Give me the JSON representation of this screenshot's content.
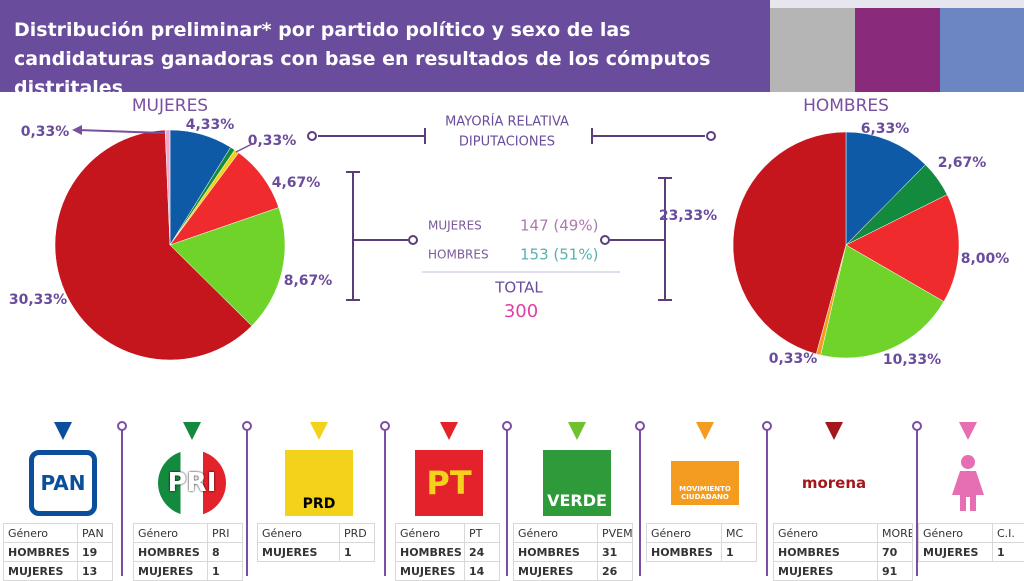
{
  "header": {
    "title": "Distribución preliminar* por partido político y sexo de las candidaturas ganadoras con base en resultados de los cómputos distritales"
  },
  "chart_data": [
    {
      "type": "pie",
      "title": "MUJERES",
      "values": [
        4.33,
        0.33,
        0.33,
        4.67,
        8.67,
        30.33,
        0.33
      ],
      "value_labels": [
        "4,33%",
        null,
        "0,33%",
        "4,67%",
        "8,67%",
        "30,33%",
        "0,33%"
      ],
      "colors": [
        "#0e5aa7",
        "#138a3e",
        "#f2d21b",
        "#ef2b2d",
        "#6fd32a",
        "#c4161c",
        "#f2a8c8"
      ]
    },
    {
      "type": "pie",
      "title": "HOMBRES",
      "values": [
        6.33,
        2.67,
        8.0,
        10.33,
        0.33,
        23.33
      ],
      "value_labels": [
        "6,33%",
        "2,67%",
        "8,00%",
        "10,33%",
        "0,33%",
        "23,33%"
      ],
      "colors": [
        "#0e5aa7",
        "#138a3e",
        "#ef2b2d",
        "#6fd32a",
        "#f39c1f",
        "#c4161c"
      ]
    }
  ],
  "summary": {
    "title_lines": [
      "MAYORÍA RELATIVA",
      "DIPUTACIONES"
    ],
    "rows": [
      {
        "label": "MUJERES",
        "value": "147 (49%)"
      },
      {
        "label": "HOMBRES",
        "value": "153 (51%)"
      }
    ],
    "total_label": "TOTAL",
    "total": "300"
  },
  "parties": [
    {
      "logo": "PAN",
      "color": "#0b4f9c",
      "table": {
        "header": [
          "Género",
          "PAN"
        ],
        "rows": [
          [
            "HOMBRES",
            "19"
          ],
          [
            "MUJERES",
            "13"
          ]
        ]
      }
    },
    {
      "logo": "PRI",
      "color": "#138a3e",
      "table": {
        "header": [
          "Género",
          "PRI"
        ],
        "rows": [
          [
            "HOMBRES",
            "8"
          ],
          [
            "MUJERES",
            "1"
          ]
        ]
      }
    },
    {
      "logo": "PRD",
      "color": "#f2d21b",
      "table": {
        "header": [
          "Género",
          "PRD"
        ],
        "rows": [
          [
            "MUJERES",
            "1"
          ]
        ]
      }
    },
    {
      "logo": "PT",
      "color": "#e3222b",
      "table": {
        "header": [
          "Género",
          "PT"
        ],
        "rows": [
          [
            "HOMBRES",
            "24"
          ],
          [
            "MUJERES",
            "14"
          ]
        ]
      }
    },
    {
      "logo": "VERDE",
      "color": "#6fc12f",
      "table": {
        "header": [
          "Género",
          "PVEM"
        ],
        "rows": [
          [
            "HOMBRES",
            "31"
          ],
          [
            "MUJERES",
            "26"
          ]
        ]
      }
    },
    {
      "logo": "MOVIMIENTO CIUDADANO",
      "color": "#f39c1f",
      "table": {
        "header": [
          "Género",
          "MC"
        ],
        "rows": [
          [
            "HOMBRES",
            "1"
          ]
        ]
      }
    },
    {
      "logo": "morena",
      "color": "#a3171d",
      "table": {
        "header": [
          "Género",
          "MORENA"
        ],
        "rows": [
          [
            "HOMBRES",
            "70"
          ],
          [
            "MUJERES",
            "91"
          ]
        ]
      }
    },
    {
      "color": "#e66fb4",
      "table": {
        "header": [
          "Género",
          "C.I."
        ],
        "rows": [
          [
            "MUJERES",
            "1"
          ]
        ]
      }
    }
  ]
}
